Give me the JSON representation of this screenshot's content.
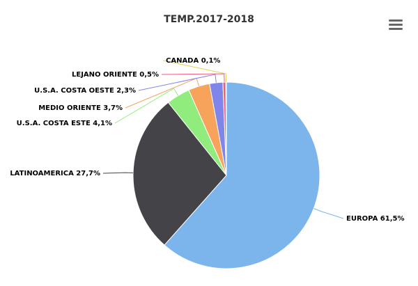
{
  "chart_data": {
    "type": "pie",
    "title": "TEMP.2017-2018",
    "slices": [
      {
        "name": "EUROPA",
        "value": 61.5,
        "label": "EUROPA 61,5%",
        "color": "#7cb5ec"
      },
      {
        "name": "LATINOAMERICA",
        "value": 27.7,
        "label": "LATINOAMERICA 27,7%",
        "color": "#434348"
      },
      {
        "name": "U.S.A. COSTA ESTE",
        "value": 4.1,
        "label": "U.S.A. COSTA ESTE 4,1%",
        "color": "#90ed7d"
      },
      {
        "name": "MEDIO ORIENTE",
        "value": 3.7,
        "label": "MEDIO ORIENTE 3,7%",
        "color": "#f7a35c"
      },
      {
        "name": "U.S.A. COSTA OESTE",
        "value": 2.3,
        "label": "U.S.A. COSTA OESTE 2,3%",
        "color": "#8085e9"
      },
      {
        "name": "LEJANO ORIENTE",
        "value": 0.5,
        "label": "LEJANO ORIENTE 0,5%",
        "color": "#f15c80"
      },
      {
        "name": "CANADA",
        "value": 0.1,
        "label": "CANADA 0,1%",
        "color": "#e4d354"
      }
    ],
    "legend": "none",
    "data_labels": "outside-with-connectors"
  },
  "toolbar": {
    "menu_icon": "hamburger-menu-icon"
  }
}
